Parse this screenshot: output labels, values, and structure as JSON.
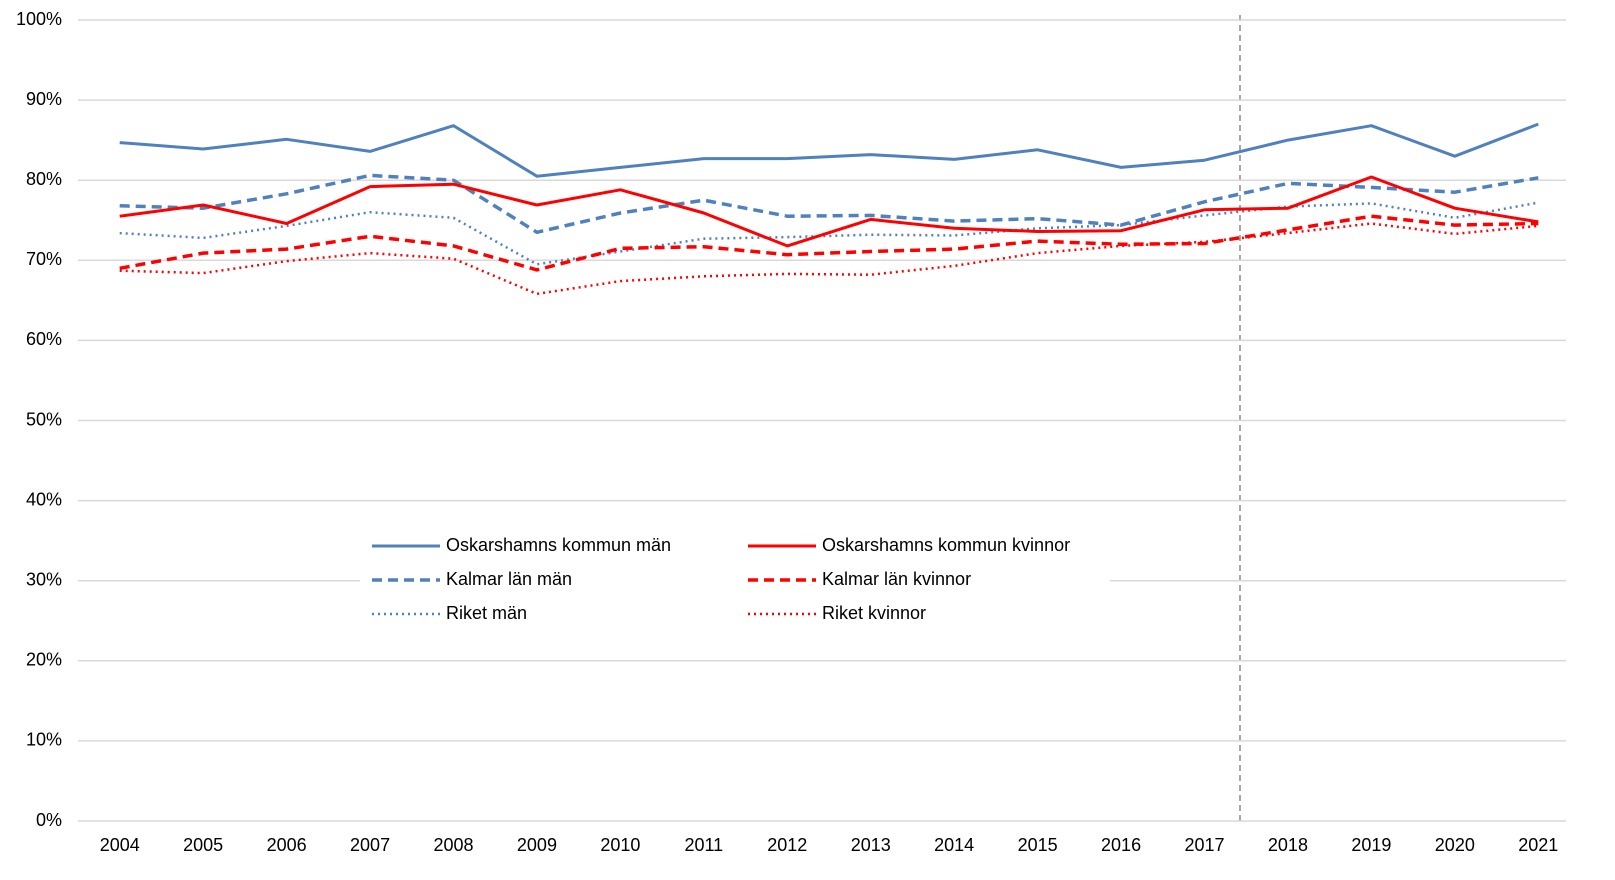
{
  "chart_data": {
    "type": "line",
    "categories": [
      "2004",
      "2005",
      "2006",
      "2007",
      "2008",
      "2009",
      "2010",
      "2011",
      "2012",
      "2013",
      "2014",
      "2015",
      "2016",
      "2017",
      "2018",
      "2019",
      "2020",
      "2021"
    ],
    "series": [
      {
        "name": "Oskarshamns kommun män",
        "color": "#4f81bd",
        "style": "solid",
        "values": [
          84.7,
          83.9,
          85.1,
          83.6,
          86.8,
          80.5,
          81.6,
          82.7,
          82.7,
          83.2,
          82.6,
          83.8,
          81.6,
          82.5,
          85.0,
          86.8,
          83.0,
          87.0
        ]
      },
      {
        "name": "Kalmar län män",
        "color": "#4f81bd",
        "style": "dashed",
        "values": [
          76.8,
          76.5,
          78.3,
          80.6,
          80.0,
          73.5,
          75.9,
          77.5,
          75.5,
          75.6,
          74.9,
          75.2,
          74.4,
          77.3,
          79.6,
          79.1,
          78.5,
          80.3
        ]
      },
      {
        "name": "Riket män",
        "color": "#4f81bd",
        "style": "dotted",
        "values": [
          73.4,
          72.8,
          74.3,
          76.0,
          75.3,
          69.5,
          71.1,
          72.7,
          72.9,
          73.2,
          73.1,
          74.0,
          74.4,
          75.6,
          76.7,
          77.1,
          75.3,
          77.2
        ]
      },
      {
        "name": "Oskarshamns kommun kvinnor",
        "color": "#ff0000",
        "style": "solid",
        "values": [
          75.5,
          76.9,
          74.6,
          79.2,
          79.5,
          76.9,
          78.8,
          75.9,
          71.8,
          75.1,
          74.0,
          73.6,
          73.7,
          76.3,
          76.5,
          80.4,
          76.5,
          74.8
        ]
      },
      {
        "name": "Kalmar län kvinnor",
        "color": "#ff0000",
        "style": "dashed",
        "values": [
          69.0,
          70.9,
          71.4,
          73.0,
          71.8,
          68.8,
          71.5,
          71.7,
          70.7,
          71.1,
          71.4,
          72.4,
          72.0,
          72.1,
          73.8,
          75.5,
          74.4,
          74.6
        ]
      },
      {
        "name": "Riket kvinnor",
        "color": "#ff0000",
        "style": "dotted",
        "values": [
          68.7,
          68.4,
          69.9,
          70.9,
          70.2,
          65.8,
          67.4,
          68.0,
          68.3,
          68.2,
          69.3,
          70.9,
          71.8,
          72.3,
          73.4,
          74.6,
          73.3,
          74.3
        ]
      }
    ],
    "ylim": [
      0,
      100
    ],
    "yticks": [
      {
        "value": 0,
        "label": "0%"
      },
      {
        "value": 10,
        "label": "10%"
      },
      {
        "value": 20,
        "label": "20%"
      },
      {
        "value": 30,
        "label": "30%"
      },
      {
        "value": 40,
        "label": "40%"
      },
      {
        "value": 50,
        "label": "50%"
      },
      {
        "value": 60,
        "label": "60%"
      },
      {
        "value": 70,
        "label": "70%"
      },
      {
        "value": 80,
        "label": "80%"
      },
      {
        "value": 90,
        "label": "90%"
      },
      {
        "value": 100,
        "label": "100%"
      }
    ],
    "grid": true
  }
}
